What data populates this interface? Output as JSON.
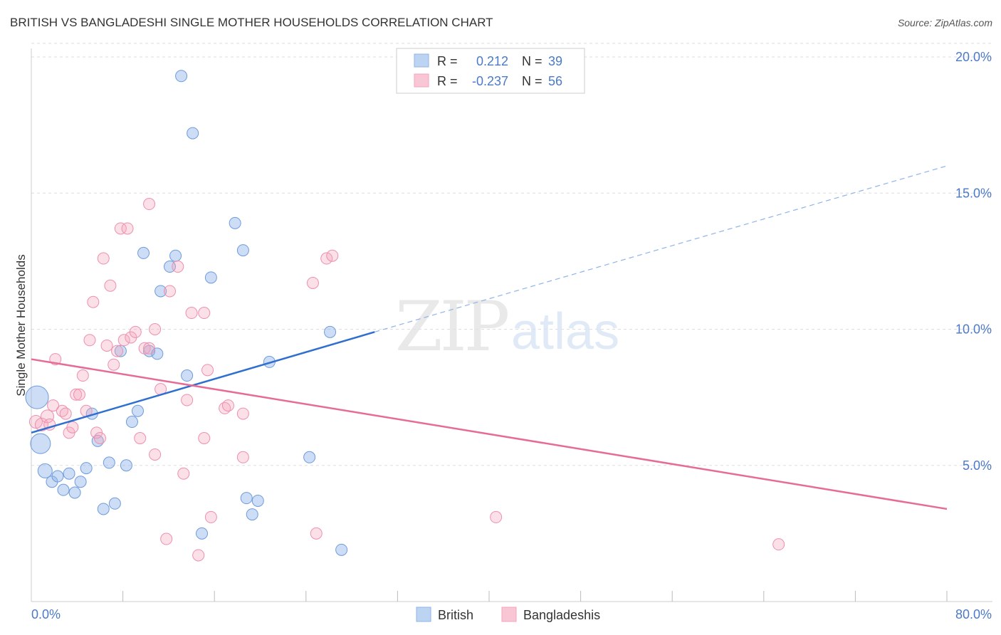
{
  "title": "BRITISH VS BANGLADESHI SINGLE MOTHER HOUSEHOLDS CORRELATION CHART",
  "source": "Source: ZipAtlas.com",
  "watermark": {
    "zip": "ZIP",
    "atlas": "atlas"
  },
  "colors": {
    "british": "#8fb4e8",
    "british_line": "#2f6fcf",
    "bangladeshis": "#f3a5bd",
    "bangladeshis_line": "#e66b96",
    "tick_text": "#4a7ac8",
    "grid": "#dddddd"
  },
  "legend_top": {
    "rows": [
      {
        "r_label": "R =",
        "r_value": "0.212",
        "n_label": "N =",
        "n_value": "39"
      },
      {
        "r_label": "R =",
        "r_value": "-0.237",
        "n_label": "N =",
        "n_value": "56"
      }
    ]
  },
  "legend_bottom": [
    "British",
    "Bangladeshis"
  ],
  "chart_data": {
    "type": "scatter",
    "title": "BRITISH VS BANGLADESHI SINGLE MOTHER HOUSEHOLDS CORRELATION CHART",
    "xlabel": "",
    "ylabel": "Single Mother Households",
    "xlim": [
      0,
      80
    ],
    "ylim": [
      0,
      20.5
    ],
    "x_tick_labels": [
      "0.0%",
      "80.0%"
    ],
    "y_ticks": [
      5,
      10,
      15,
      20
    ],
    "y_tick_labels": [
      "5.0%",
      "10.0%",
      "15.0%",
      "20.0%"
    ],
    "grid": "horizontal dashed",
    "legend_position": "top-center",
    "series": [
      {
        "name": "British",
        "r": 0.212,
        "n": 39,
        "trend": {
          "x0": 0,
          "y0": 6.2,
          "x1": 30,
          "y1": 9.9,
          "dashed_to_x": 80,
          "dashed_to_y": 16.0
        },
        "points": [
          [
            0.5,
            7.5,
            16
          ],
          [
            0.8,
            5.8,
            14
          ],
          [
            1.2,
            4.8,
            10
          ],
          [
            1.8,
            4.4,
            8
          ],
          [
            2.3,
            4.6,
            8
          ],
          [
            2.8,
            4.1,
            8
          ],
          [
            3.3,
            4.7,
            8
          ],
          [
            3.8,
            4.0,
            8
          ],
          [
            4.3,
            4.4,
            8
          ],
          [
            4.8,
            4.9,
            8
          ],
          [
            5.3,
            6.9,
            8
          ],
          [
            5.8,
            5.9,
            8
          ],
          [
            6.3,
            3.4,
            8
          ],
          [
            6.8,
            5.1,
            8
          ],
          [
            7.3,
            3.6,
            8
          ],
          [
            7.8,
            9.2,
            8
          ],
          [
            8.3,
            5.0,
            8
          ],
          [
            8.8,
            6.6,
            8
          ],
          [
            9.3,
            7.0,
            8
          ],
          [
            9.8,
            12.8,
            8
          ],
          [
            10.3,
            9.2,
            8
          ],
          [
            11.0,
            9.1,
            8
          ],
          [
            11.3,
            11.4,
            8
          ],
          [
            12.1,
            12.3,
            8
          ],
          [
            12.6,
            12.7,
            8
          ],
          [
            13.1,
            19.3,
            8
          ],
          [
            13.6,
            8.3,
            8
          ],
          [
            14.1,
            17.2,
            8
          ],
          [
            14.9,
            2.5,
            8
          ],
          [
            15.7,
            11.9,
            8
          ],
          [
            17.8,
            13.9,
            8
          ],
          [
            18.5,
            12.9,
            8
          ],
          [
            18.8,
            3.8,
            8
          ],
          [
            19.3,
            3.2,
            8
          ],
          [
            19.8,
            3.7,
            8
          ],
          [
            20.8,
            8.8,
            8
          ],
          [
            24.3,
            5.3,
            8
          ],
          [
            26.1,
            9.9,
            8
          ],
          [
            27.1,
            1.9,
            8
          ]
        ]
      },
      {
        "name": "Bangladeshis",
        "r": -0.237,
        "n": 56,
        "trend": {
          "x0": 0,
          "y0": 8.9,
          "x1": 80,
          "y1": 3.4
        },
        "points": [
          [
            0.4,
            6.6,
            9
          ],
          [
            0.9,
            6.5,
            9
          ],
          [
            1.4,
            6.8,
            9
          ],
          [
            1.6,
            6.5,
            8
          ],
          [
            1.9,
            7.2,
            8
          ],
          [
            2.1,
            8.9,
            8
          ],
          [
            2.7,
            7.0,
            8
          ],
          [
            3.0,
            6.9,
            8
          ],
          [
            3.3,
            6.2,
            8
          ],
          [
            3.6,
            6.4,
            8
          ],
          [
            3.9,
            7.6,
            8
          ],
          [
            4.2,
            7.6,
            8
          ],
          [
            4.5,
            8.3,
            8
          ],
          [
            4.8,
            7.0,
            8
          ],
          [
            5.1,
            9.6,
            8
          ],
          [
            5.4,
            11.0,
            8
          ],
          [
            5.7,
            6.2,
            8
          ],
          [
            6.0,
            6.0,
            8
          ],
          [
            6.3,
            12.6,
            8
          ],
          [
            6.6,
            9.4,
            8
          ],
          [
            6.9,
            11.6,
            8
          ],
          [
            7.2,
            8.7,
            8
          ],
          [
            7.5,
            9.2,
            8
          ],
          [
            7.8,
            13.7,
            8
          ],
          [
            8.1,
            9.6,
            8
          ],
          [
            8.4,
            13.7,
            8
          ],
          [
            8.7,
            9.7,
            8
          ],
          [
            9.1,
            9.9,
            8
          ],
          [
            9.5,
            6.0,
            8
          ],
          [
            9.9,
            9.3,
            8
          ],
          [
            10.3,
            9.3,
            8
          ],
          [
            10.3,
            14.6,
            8
          ],
          [
            10.8,
            10.0,
            8
          ],
          [
            10.8,
            5.4,
            8
          ],
          [
            11.3,
            7.8,
            8
          ],
          [
            11.8,
            2.3,
            8
          ],
          [
            12.1,
            11.4,
            8
          ],
          [
            12.8,
            12.3,
            8
          ],
          [
            13.3,
            4.7,
            8
          ],
          [
            13.6,
            7.4,
            8
          ],
          [
            14.0,
            10.6,
            8
          ],
          [
            14.6,
            1.7,
            8
          ],
          [
            15.1,
            10.6,
            8
          ],
          [
            15.1,
            6.0,
            8
          ],
          [
            15.4,
            8.5,
            8
          ],
          [
            15.7,
            3.1,
            8
          ],
          [
            16.9,
            7.1,
            8
          ],
          [
            17.2,
            7.2,
            8
          ],
          [
            18.5,
            6.9,
            8
          ],
          [
            18.5,
            5.3,
            8
          ],
          [
            24.6,
            11.7,
            8
          ],
          [
            24.9,
            2.5,
            8
          ],
          [
            25.8,
            12.6,
            8
          ],
          [
            26.3,
            12.7,
            8
          ],
          [
            40.6,
            3.1,
            8
          ],
          [
            65.3,
            2.1,
            8
          ]
        ]
      }
    ]
  }
}
